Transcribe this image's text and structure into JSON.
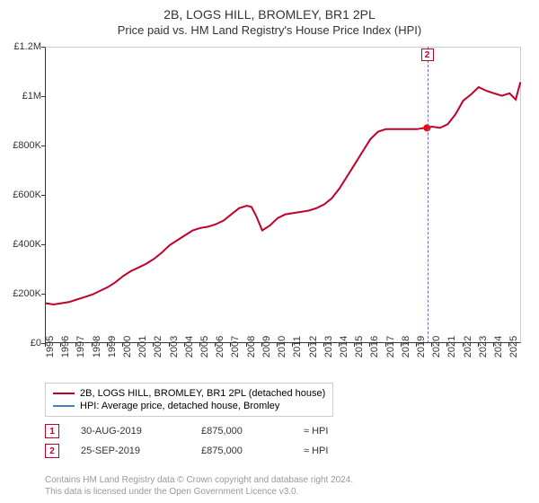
{
  "title": "2B, LOGS HILL, BROMLEY, BR1 2PL",
  "subtitle": "Price paid vs. HM Land Registry's House Price Index (HPI)",
  "chart": {
    "type": "line",
    "background_color": "#ffffff",
    "border_color": "#cccccc",
    "axis_color": "#333333",
    "tick_fontsize": 11,
    "x": {
      "min": 1995,
      "max": 2025.8,
      "ticks": [
        1995,
        1996,
        1997,
        1998,
        1999,
        2000,
        2001,
        2002,
        2003,
        2004,
        2005,
        2006,
        2007,
        2008,
        2009,
        2010,
        2011,
        2012,
        2013,
        2014,
        2015,
        2016,
        2017,
        2018,
        2019,
        2020,
        2021,
        2022,
        2023,
        2024,
        2025
      ]
    },
    "y": {
      "min": 0,
      "max": 1200000,
      "ticks": [
        {
          "v": 0,
          "label": "£0"
        },
        {
          "v": 200000,
          "label": "£200K"
        },
        {
          "v": 400000,
          "label": "£400K"
        },
        {
          "v": 600000,
          "label": "£600K"
        },
        {
          "v": 800000,
          "label": "£800K"
        },
        {
          "v": 1000000,
          "label": "£1M"
        },
        {
          "v": 1200000,
          "label": "£1.2M"
        }
      ]
    },
    "series": [
      {
        "name": "2B, LOGS HILL, BROMLEY, BR1 2PL (detached house)",
        "color": "#c1002a",
        "line_width": 2,
        "points": [
          [
            1995,
            165000
          ],
          [
            1995.5,
            160000
          ],
          [
            1996,
            165000
          ],
          [
            1996.5,
            170000
          ],
          [
            1997,
            180000
          ],
          [
            1997.5,
            190000
          ],
          [
            1998,
            200000
          ],
          [
            1998.5,
            215000
          ],
          [
            1999,
            230000
          ],
          [
            1999.5,
            250000
          ],
          [
            2000,
            275000
          ],
          [
            2000.5,
            295000
          ],
          [
            2001,
            310000
          ],
          [
            2001.5,
            325000
          ],
          [
            2002,
            345000
          ],
          [
            2002.5,
            370000
          ],
          [
            2003,
            400000
          ],
          [
            2003.5,
            420000
          ],
          [
            2004,
            440000
          ],
          [
            2004.5,
            460000
          ],
          [
            2005,
            470000
          ],
          [
            2005.5,
            475000
          ],
          [
            2006,
            485000
          ],
          [
            2006.5,
            500000
          ],
          [
            2007,
            525000
          ],
          [
            2007.5,
            550000
          ],
          [
            2008,
            560000
          ],
          [
            2008.3,
            555000
          ],
          [
            2008.6,
            520000
          ],
          [
            2009,
            460000
          ],
          [
            2009.5,
            480000
          ],
          [
            2010,
            510000
          ],
          [
            2010.5,
            525000
          ],
          [
            2011,
            530000
          ],
          [
            2011.5,
            535000
          ],
          [
            2012,
            540000
          ],
          [
            2012.5,
            550000
          ],
          [
            2013,
            565000
          ],
          [
            2013.5,
            590000
          ],
          [
            2014,
            630000
          ],
          [
            2014.5,
            680000
          ],
          [
            2015,
            730000
          ],
          [
            2015.5,
            780000
          ],
          [
            2016,
            830000
          ],
          [
            2016.5,
            860000
          ],
          [
            2017,
            870000
          ],
          [
            2017.5,
            870000
          ],
          [
            2018,
            870000
          ],
          [
            2018.5,
            870000
          ],
          [
            2019,
            870000
          ],
          [
            2019.5,
            875000
          ],
          [
            2020,
            880000
          ],
          [
            2020.5,
            875000
          ],
          [
            2021,
            890000
          ],
          [
            2021.5,
            930000
          ],
          [
            2022,
            985000
          ],
          [
            2022.5,
            1010000
          ],
          [
            2023,
            1040000
          ],
          [
            2023.5,
            1025000
          ],
          [
            2024,
            1015000
          ],
          [
            2024.5,
            1005000
          ],
          [
            2025,
            1015000
          ],
          [
            2025.4,
            990000
          ],
          [
            2025.7,
            1060000
          ]
        ]
      }
    ],
    "point_markers": [
      {
        "x": 2019.66,
        "y": 875000,
        "color": "#ff0000",
        "radius": 4
      }
    ],
    "event_lines": [
      {
        "x": 2019.73,
        "label": "2",
        "color": "#6666cc",
        "label_border": "#c1002a",
        "label_color": "#c1002a"
      }
    ]
  },
  "legend": {
    "border_color": "#cccccc",
    "items": [
      {
        "color": "#c1002a",
        "text": "2B, LOGS HILL, BROMLEY, BR1 2PL (detached house)"
      },
      {
        "color": "#4a7ebb",
        "text": "HPI: Average price, detached house, Bromley"
      }
    ]
  },
  "transactions": [
    {
      "n": "1",
      "date": "30-AUG-2019",
      "price": "£875,000",
      "note": "≈ HPI",
      "border": "#c1002a",
      "color": "#c1002a"
    },
    {
      "n": "2",
      "date": "25-SEP-2019",
      "price": "£875,000",
      "note": "≈ HPI",
      "border": "#c1002a",
      "color": "#c1002a"
    }
  ],
  "footer_line1": "Contains HM Land Registry data © Crown copyright and database right 2024.",
  "footer_line2": "This data is licensed under the Open Government Licence v3.0."
}
